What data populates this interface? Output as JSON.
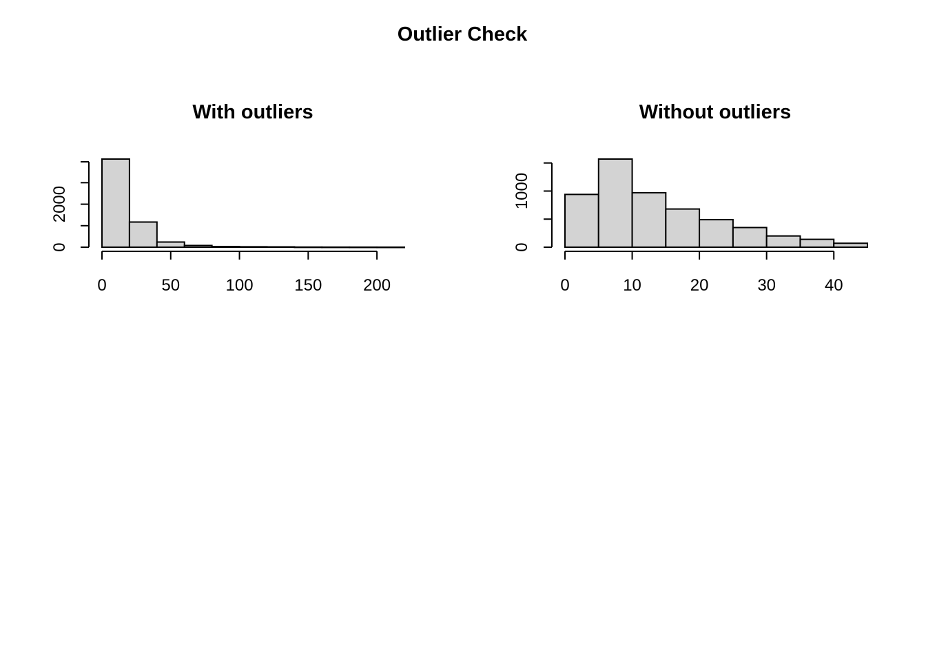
{
  "figure": {
    "title": "Outlier Check"
  },
  "chart_data": [
    {
      "type": "bar",
      "title": "With outliers",
      "xlabel": "",
      "ylabel": "",
      "bin_edges": [
        0,
        20,
        40,
        60,
        80,
        100,
        120,
        140,
        160,
        180,
        200,
        220
      ],
      "values": [
        4100,
        1170,
        240,
        80,
        30,
        20,
        15,
        5,
        3,
        2,
        1
      ],
      "xlim": [
        0,
        220
      ],
      "ylim": [
        0,
        4100
      ],
      "x_ticks": [
        0,
        50,
        100,
        150,
        200
      ],
      "x_tick_labels": [
        "0",
        "50",
        "100",
        "150",
        "200"
      ],
      "y_ticks": [
        0,
        1000,
        2000,
        3000,
        4000
      ],
      "y_tick_labels": [
        "0",
        "",
        "2000",
        "",
        ""
      ],
      "bar_color": "#d3d3d3",
      "grid": false
    },
    {
      "type": "bar",
      "title": "Without outliers",
      "xlabel": "",
      "ylabel": "",
      "bin_edges": [
        0,
        5,
        10,
        15,
        20,
        25,
        30,
        35,
        40,
        45
      ],
      "values": [
        940,
        1570,
        970,
        680,
        490,
        350,
        200,
        140,
        70
      ],
      "xlim": [
        0,
        45
      ],
      "ylim": [
        0,
        1570
      ],
      "x_ticks": [
        0,
        10,
        20,
        30,
        40
      ],
      "x_tick_labels": [
        "0",
        "10",
        "20",
        "30",
        "40"
      ],
      "y_ticks": [
        0,
        500,
        1000,
        1500
      ],
      "y_tick_labels": [
        "0",
        "",
        "1000",
        ""
      ],
      "bar_color": "#d3d3d3",
      "grid": false
    }
  ]
}
